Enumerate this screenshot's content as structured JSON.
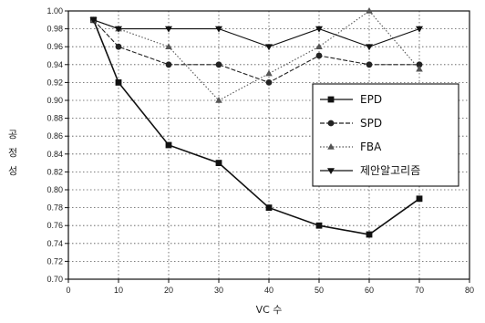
{
  "chart_data": {
    "type": "line",
    "title": "",
    "xlabel": "VC 수",
    "ylabel": "공정성",
    "xlim": [
      0,
      80
    ],
    "ylim": [
      0.7,
      1.0
    ],
    "x_ticks": [
      "0",
      "10",
      "20",
      "30",
      "40",
      "50",
      "60",
      "70",
      "80"
    ],
    "y_ticks": [
      "0.70",
      "0.72",
      "0.74",
      "0.76",
      "0.78",
      "0.80",
      "0.82",
      "0.84",
      "0.86",
      "0.88",
      "0.90",
      "0.92",
      "0.94",
      "0.96",
      "0.98",
      "1.00"
    ],
    "grid": true,
    "legend_position": "center-right",
    "x": [
      5,
      10,
      20,
      30,
      40,
      50,
      60,
      70
    ],
    "series": [
      {
        "name": "EPD",
        "marker": "square",
        "line": "solid",
        "color": "#111111",
        "values": [
          0.99,
          0.92,
          0.85,
          0.83,
          0.78,
          0.76,
          0.75,
          0.79
        ]
      },
      {
        "name": "SPD",
        "marker": "circle",
        "line": "dash",
        "color": "#222222",
        "values": [
          0.99,
          0.96,
          0.94,
          0.94,
          0.92,
          0.95,
          0.94,
          0.94
        ]
      },
      {
        "name": "FBA",
        "marker": "triangle-up",
        "line": "dot",
        "color": "#555555",
        "values": [
          0.99,
          0.98,
          0.96,
          0.9,
          0.93,
          0.96,
          1.0,
          0.935
        ]
      },
      {
        "name": "제안알고리즘",
        "marker": "triangle-down",
        "line": "solid",
        "color": "#111111",
        "values": [
          0.99,
          0.98,
          0.98,
          0.98,
          0.96,
          0.98,
          0.96,
          0.98
        ]
      }
    ]
  }
}
